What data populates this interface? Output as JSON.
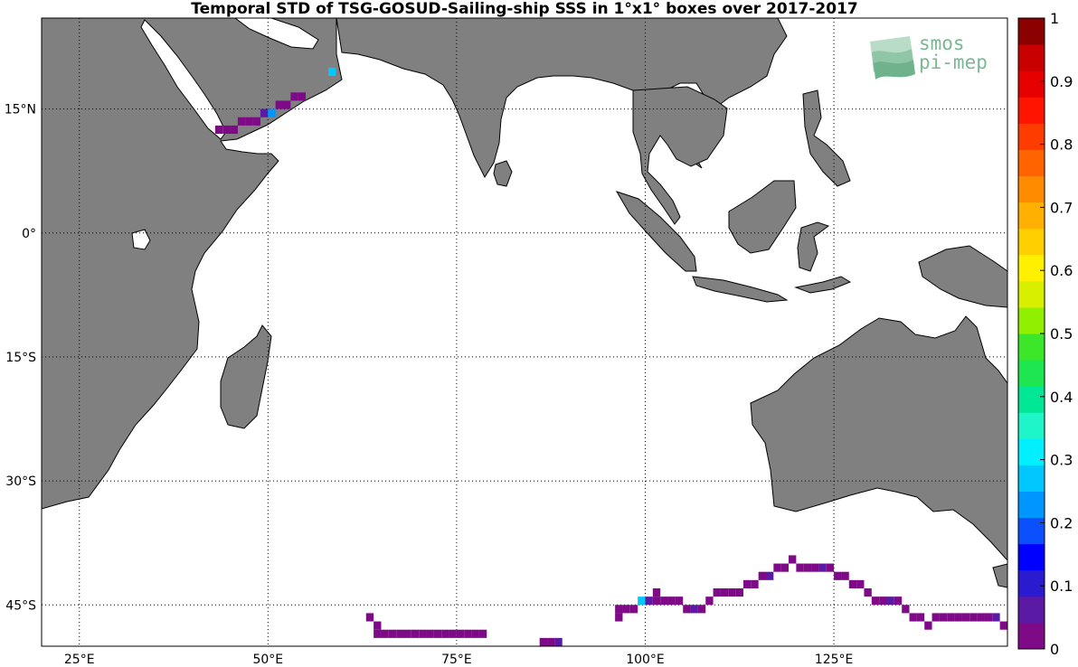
{
  "title": "Temporal STD of TSG-GOSUD-Sailing-ship SSS in 1°x1° boxes over 2017-2017",
  "logo": {
    "line1": "smos",
    "line2": "pi-mep"
  },
  "map": {
    "lon_range": [
      20,
      148
    ],
    "lat_range": [
      -50,
      26
    ],
    "lon_ticks": [
      25,
      50,
      75,
      100,
      125
    ],
    "lon_tick_labels": [
      "25°E",
      "50°E",
      "75°E",
      "100°E",
      "125°E"
    ],
    "lat_ticks": [
      15,
      0,
      -15,
      -30,
      -45
    ],
    "lat_tick_labels": [
      "15°N",
      "0°",
      "15°S",
      "30°S",
      "45°S"
    ],
    "land_color": "#808080",
    "ocean_color": "#ffffff",
    "grid": "dotted"
  },
  "colorbar": {
    "min": 0,
    "max": 1,
    "ticks": [
      0,
      0.1,
      0.2,
      0.3,
      0.4,
      0.5,
      0.6,
      0.7,
      0.8,
      0.9,
      1
    ],
    "tick_labels": [
      "0",
      "0.1",
      "0.2",
      "0.3",
      "0.4",
      "0.5",
      "0.6",
      "0.7",
      "0.8",
      "0.9",
      "1"
    ],
    "colors": [
      "#7e0a88",
      "#5a1aa3",
      "#2a1ad0",
      "#0000ff",
      "#0a50ff",
      "#0096ff",
      "#00c8ff",
      "#00f0ff",
      "#1ef5c8",
      "#00e896",
      "#1ee650",
      "#3ce628",
      "#90f000",
      "#d8f000",
      "#fff000",
      "#ffd000",
      "#ffb000",
      "#ff8c00",
      "#ff6400",
      "#ff3c00",
      "#ff1400",
      "#e60000",
      "#c80000",
      "#8b0000"
    ]
  },
  "chart_data": {
    "type": "heatmap",
    "title": "Temporal STD of TSG-GOSUD-Sailing-ship SSS in 1°x1° boxes over 2017-2017",
    "cell_size_deg": 1,
    "cells": [
      {
        "lon": 43.5,
        "lat": 12.5,
        "v": 0.02
      },
      {
        "lon": 44.5,
        "lat": 12.5,
        "v": 0.02
      },
      {
        "lon": 45.5,
        "lat": 12.5,
        "v": 0.03
      },
      {
        "lon": 46.5,
        "lat": 13.5,
        "v": 0.02
      },
      {
        "lon": 47.5,
        "lat": 13.5,
        "v": 0.02
      },
      {
        "lon": 48.5,
        "lat": 13.5,
        "v": 0.03
      },
      {
        "lon": 49.5,
        "lat": 14.5,
        "v": 0.05
      },
      {
        "lon": 50.5,
        "lat": 14.5,
        "v": 0.22
      },
      {
        "lon": 51.5,
        "lat": 15.5,
        "v": 0.04
      },
      {
        "lon": 52.5,
        "lat": 15.5,
        "v": 0.02
      },
      {
        "lon": 53.5,
        "lat": 16.5,
        "v": 0.03
      },
      {
        "lon": 54.5,
        "lat": 16.5,
        "v": 0.02
      },
      {
        "lon": 58.5,
        "lat": 19.5,
        "v": 0.25
      },
      {
        "lon": 63.5,
        "lat": -46.5,
        "v": 0.02
      },
      {
        "lon": 64.5,
        "lat": -47.5,
        "v": 0.02
      },
      {
        "lon": 64.5,
        "lat": -48.5,
        "v": 0.02
      },
      {
        "lon": 65.5,
        "lat": -48.5,
        "v": 0.02
      },
      {
        "lon": 66.5,
        "lat": -48.5,
        "v": 0.02
      },
      {
        "lon": 67.5,
        "lat": -48.5,
        "v": 0.02
      },
      {
        "lon": 68.5,
        "lat": -48.5,
        "v": 0.02
      },
      {
        "lon": 69.5,
        "lat": -48.5,
        "v": 0.03
      },
      {
        "lon": 70.5,
        "lat": -48.5,
        "v": 0.02
      },
      {
        "lon": 71.5,
        "lat": -48.5,
        "v": 0.02
      },
      {
        "lon": 72.5,
        "lat": -48.5,
        "v": 0.02
      },
      {
        "lon": 73.5,
        "lat": -48.5,
        "v": 0.02
      },
      {
        "lon": 74.5,
        "lat": -48.5,
        "v": 0.02
      },
      {
        "lon": 75.5,
        "lat": -48.5,
        "v": 0.02
      },
      {
        "lon": 76.5,
        "lat": -48.5,
        "v": 0.02
      },
      {
        "lon": 77.5,
        "lat": -48.5,
        "v": 0.02
      },
      {
        "lon": 78.5,
        "lat": -48.5,
        "v": 0.02
      },
      {
        "lon": 86.5,
        "lat": -49.5,
        "v": 0.02
      },
      {
        "lon": 87.5,
        "lat": -49.5,
        "v": 0.02
      },
      {
        "lon": 88.5,
        "lat": -49.5,
        "v": 0.08
      },
      {
        "lon": 96.5,
        "lat": -45.5,
        "v": 0.02
      },
      {
        "lon": 96.5,
        "lat": -46.5,
        "v": 0.02
      },
      {
        "lon": 97.5,
        "lat": -45.5,
        "v": 0.02
      },
      {
        "lon": 98.5,
        "lat": -45.5,
        "v": 0.02
      },
      {
        "lon": 99.5,
        "lat": -44.5,
        "v": 0.25
      },
      {
        "lon": 100.5,
        "lat": -44.5,
        "v": 0.05
      },
      {
        "lon": 101.5,
        "lat": -44.5,
        "v": 0.02
      },
      {
        "lon": 101.5,
        "lat": -43.5,
        "v": 0.02
      },
      {
        "lon": 102.5,
        "lat": -44.5,
        "v": 0.03
      },
      {
        "lon": 103.5,
        "lat": -44.5,
        "v": 0.02
      },
      {
        "lon": 104.5,
        "lat": -44.5,
        "v": 0.03
      },
      {
        "lon": 105.5,
        "lat": -45.5,
        "v": 0.02
      },
      {
        "lon": 106.5,
        "lat": -45.5,
        "v": 0.08
      },
      {
        "lon": 107.5,
        "lat": -45.5,
        "v": 0.02
      },
      {
        "lon": 108.5,
        "lat": -44.5,
        "v": 0.02
      },
      {
        "lon": 109.5,
        "lat": -43.5,
        "v": 0.03
      },
      {
        "lon": 110.5,
        "lat": -43.5,
        "v": 0.04
      },
      {
        "lon": 111.5,
        "lat": -43.5,
        "v": 0.02
      },
      {
        "lon": 112.5,
        "lat": -43.5,
        "v": 0.02
      },
      {
        "lon": 113.5,
        "lat": -42.5,
        "v": 0.02
      },
      {
        "lon": 114.5,
        "lat": -42.5,
        "v": 0.02
      },
      {
        "lon": 115.5,
        "lat": -41.5,
        "v": 0.02
      },
      {
        "lon": 116.5,
        "lat": -41.5,
        "v": 0.06
      },
      {
        "lon": 117.5,
        "lat": -40.5,
        "v": 0.02
      },
      {
        "lon": 118.5,
        "lat": -40.5,
        "v": 0.02
      },
      {
        "lon": 119.5,
        "lat": -39.5,
        "v": 0.04
      },
      {
        "lon": 120.5,
        "lat": -40.5,
        "v": 0.02
      },
      {
        "lon": 121.5,
        "lat": -40.5,
        "v": 0.02
      },
      {
        "lon": 122.5,
        "lat": -40.5,
        "v": 0.02
      },
      {
        "lon": 123.5,
        "lat": -40.5,
        "v": 0.06
      },
      {
        "lon": 124.5,
        "lat": -40.5,
        "v": 0.02
      },
      {
        "lon": 125.5,
        "lat": -41.5,
        "v": 0.02
      },
      {
        "lon": 126.5,
        "lat": -41.5,
        "v": 0.02
      },
      {
        "lon": 127.5,
        "lat": -42.5,
        "v": 0.03
      },
      {
        "lon": 128.5,
        "lat": -42.5,
        "v": 0.02
      },
      {
        "lon": 129.5,
        "lat": -43.5,
        "v": 0.02
      },
      {
        "lon": 130.5,
        "lat": -44.5,
        "v": 0.02
      },
      {
        "lon": 131.5,
        "lat": -44.5,
        "v": 0.02
      },
      {
        "lon": 132.5,
        "lat": -44.5,
        "v": 0.05
      },
      {
        "lon": 133.5,
        "lat": -44.5,
        "v": 0.02
      },
      {
        "lon": 134.5,
        "lat": -45.5,
        "v": 0.02
      },
      {
        "lon": 135.5,
        "lat": -46.5,
        "v": 0.02
      },
      {
        "lon": 136.5,
        "lat": -46.5,
        "v": 0.02
      },
      {
        "lon": 137.5,
        "lat": -47.5,
        "v": 0.02
      },
      {
        "lon": 138.5,
        "lat": -46.5,
        "v": 0.02
      },
      {
        "lon": 139.5,
        "lat": -46.5,
        "v": 0.02
      },
      {
        "lon": 140.5,
        "lat": -46.5,
        "v": 0.02
      },
      {
        "lon": 141.5,
        "lat": -46.5,
        "v": 0.02
      },
      {
        "lon": 142.5,
        "lat": -46.5,
        "v": 0.02
      },
      {
        "lon": 143.5,
        "lat": -46.5,
        "v": 0.02
      },
      {
        "lon": 144.5,
        "lat": -46.5,
        "v": 0.02
      },
      {
        "lon": 145.5,
        "lat": -46.5,
        "v": 0.02
      },
      {
        "lon": 146.5,
        "lat": -46.5,
        "v": 0.06
      },
      {
        "lon": 147.5,
        "lat": -47.5,
        "v": 0.02
      }
    ]
  }
}
